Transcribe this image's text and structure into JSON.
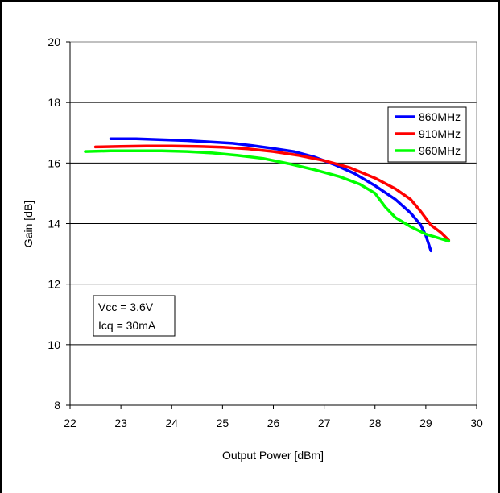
{
  "chart_data": {
    "type": "line",
    "xlabel": "Output Power [dBm]",
    "ylabel": "Gain [dB]",
    "xlim": [
      22,
      30
    ],
    "ylim": [
      8,
      20
    ],
    "x_ticks": [
      "22",
      "23",
      "24",
      "25",
      "26",
      "27",
      "28",
      "29",
      "30"
    ],
    "y_ticks": [
      "8",
      "10",
      "12",
      "14",
      "16",
      "18",
      "20"
    ],
    "grid": "horizontal",
    "legend_position": "top-right",
    "annotation": [
      "Vcc = 3.6V",
      "Icq = 30mA"
    ],
    "series": [
      {
        "name": "860MHz",
        "color": "#0000ff",
        "points": [
          [
            22.8,
            16.8
          ],
          [
            23.3,
            16.8
          ],
          [
            23.8,
            16.77
          ],
          [
            24.3,
            16.74
          ],
          [
            24.7,
            16.7
          ],
          [
            25.2,
            16.65
          ],
          [
            25.6,
            16.57
          ],
          [
            26.0,
            16.48
          ],
          [
            26.4,
            16.38
          ],
          [
            26.8,
            16.2
          ],
          [
            27.2,
            15.95
          ],
          [
            27.6,
            15.65
          ],
          [
            28.0,
            15.25
          ],
          [
            28.4,
            14.8
          ],
          [
            28.7,
            14.35
          ],
          [
            28.9,
            13.95
          ],
          [
            29.0,
            13.6
          ],
          [
            29.1,
            13.1
          ]
        ]
      },
      {
        "name": "910MHz",
        "color": "#ff0000",
        "points": [
          [
            22.5,
            16.53
          ],
          [
            23.0,
            16.55
          ],
          [
            23.5,
            16.56
          ],
          [
            24.0,
            16.56
          ],
          [
            24.5,
            16.55
          ],
          [
            25.0,
            16.52
          ],
          [
            25.5,
            16.47
          ],
          [
            26.0,
            16.38
          ],
          [
            26.5,
            16.25
          ],
          [
            27.0,
            16.08
          ],
          [
            27.5,
            15.85
          ],
          [
            28.0,
            15.5
          ],
          [
            28.4,
            15.15
          ],
          [
            28.7,
            14.8
          ],
          [
            28.9,
            14.4
          ],
          [
            29.1,
            13.95
          ],
          [
            29.3,
            13.7
          ],
          [
            29.45,
            13.45
          ]
        ]
      },
      {
        "name": "960MHz",
        "color": "#00ff00",
        "points": [
          [
            22.3,
            16.38
          ],
          [
            22.8,
            16.4
          ],
          [
            23.3,
            16.4
          ],
          [
            23.8,
            16.4
          ],
          [
            24.3,
            16.38
          ],
          [
            24.8,
            16.33
          ],
          [
            25.3,
            16.25
          ],
          [
            25.8,
            16.15
          ],
          [
            26.3,
            15.98
          ],
          [
            26.8,
            15.78
          ],
          [
            27.3,
            15.55
          ],
          [
            27.7,
            15.3
          ],
          [
            28.0,
            15.0
          ],
          [
            28.2,
            14.55
          ],
          [
            28.4,
            14.2
          ],
          [
            28.7,
            13.9
          ],
          [
            29.0,
            13.65
          ],
          [
            29.45,
            13.42
          ]
        ]
      }
    ]
  }
}
